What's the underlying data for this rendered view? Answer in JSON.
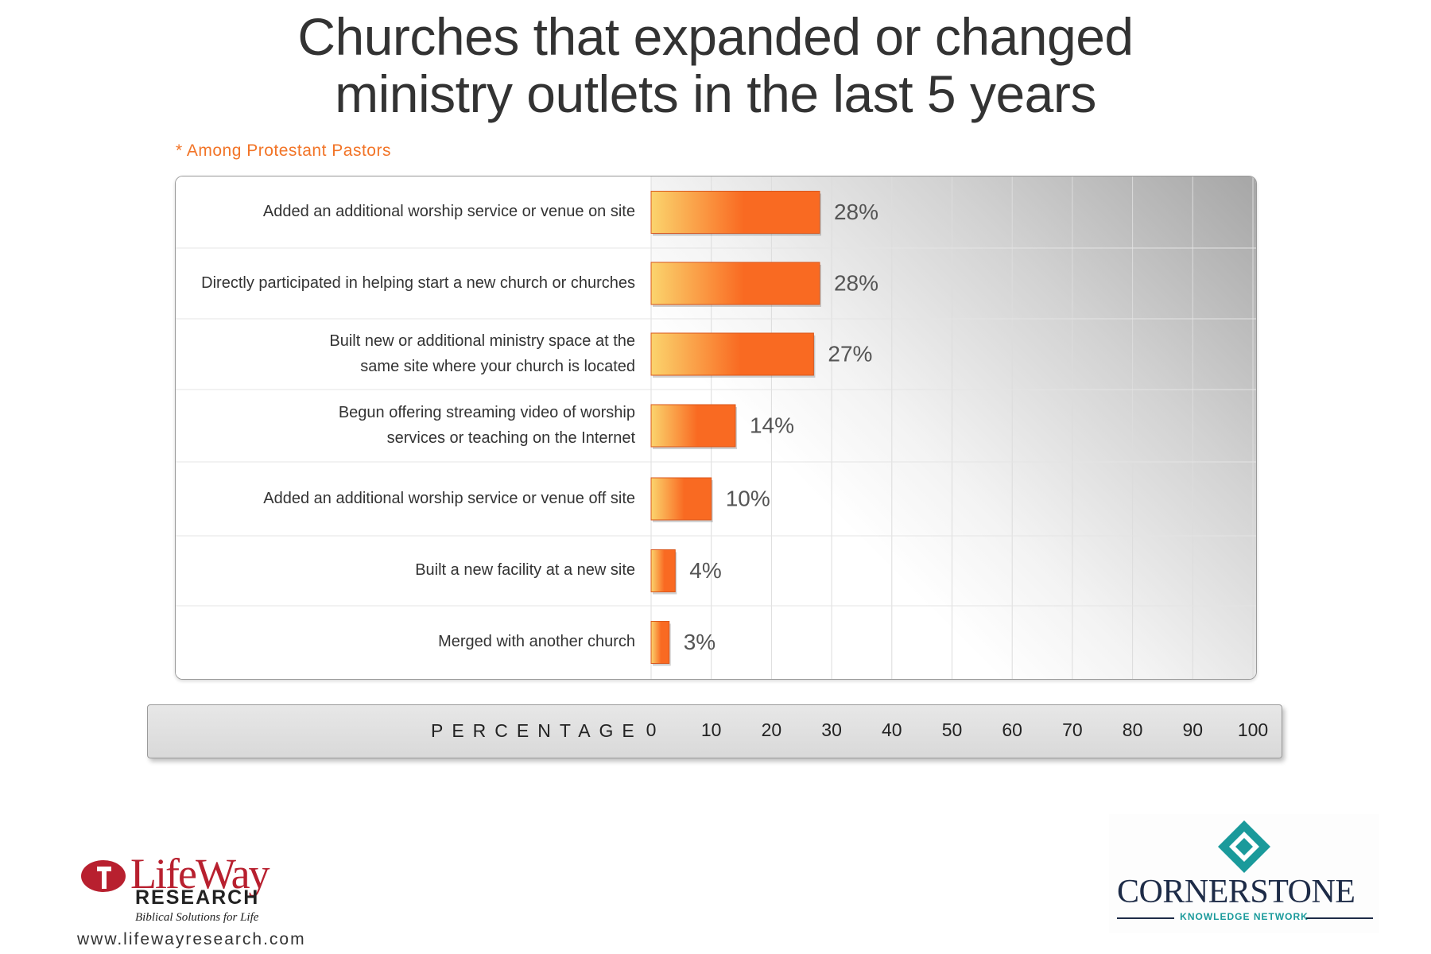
{
  "chart_data": {
    "type": "bar",
    "orientation": "horizontal",
    "title": [
      "Churches that expanded or changed",
      "ministry outlets in the last 5 years"
    ],
    "subtitle": "* Among Protestant Pastors",
    "categories": [
      "Added an additional worship service or venue on site",
      "Directly participated in helping start a new church or churches",
      "Built new or additional ministry space at the\nsame site where your church is located",
      "Begun offering streaming video of worship\nservices or teaching on the Internet",
      "Added an additional worship service or venue off site",
      "Built a new facility at a new site",
      "Merged with another church"
    ],
    "values": [
      28,
      28,
      27,
      14,
      10,
      4,
      3
    ],
    "value_labels": [
      "28%",
      "28%",
      "27%",
      "14%",
      "10%",
      "4%",
      "3%"
    ],
    "xlabel": "PERCENTAGE",
    "xlim": [
      0,
      100
    ],
    "xticks": [
      "0",
      "10",
      "20",
      "30",
      "40",
      "50",
      "60",
      "70",
      "80",
      "90",
      "100"
    ],
    "grid": true,
    "bar_color_start": "#fbd46d",
    "bar_color_end": "#f96a22"
  },
  "logos": {
    "lifeway_name": "LifeWay",
    "lifeway_research": "RESEARCH",
    "lifeway_tagline": "Biblical Solutions for Life",
    "lifeway_url": "www.lifewayresearch.com",
    "cornerstone_name": "CORNERSTONE",
    "cornerstone_sub": "KNOWLEDGE NETWORK"
  },
  "colors": {
    "accent": "#f27427",
    "lifeway_red": "#b8202f",
    "cornerstone_teal": "#1a9a9b",
    "cornerstone_navy": "#1d2b47"
  }
}
